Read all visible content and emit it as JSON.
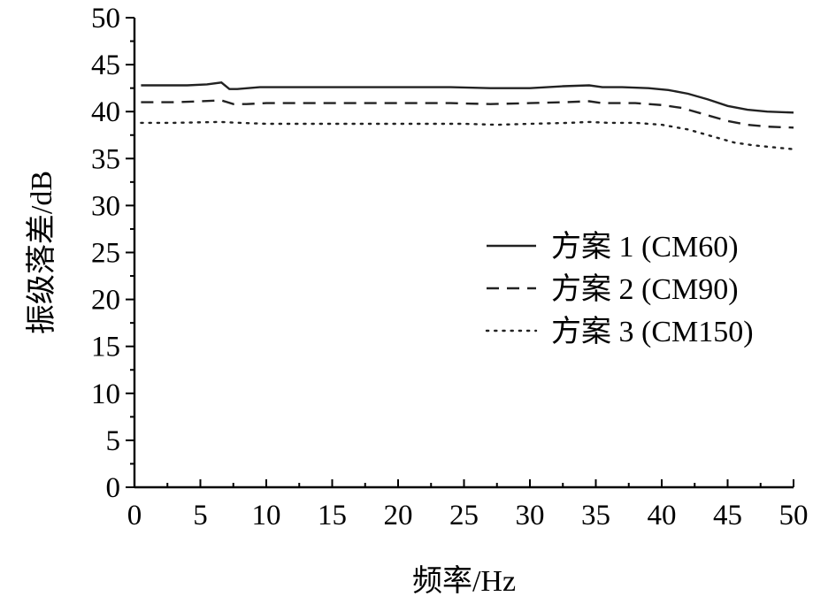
{
  "chart_data": {
    "type": "line",
    "xlabel": "频率/Hz",
    "ylabel": "振级落差/dB",
    "xlim": [
      0,
      50
    ],
    "ylim": [
      0,
      50
    ],
    "x_ticks": [
      0,
      5,
      10,
      15,
      20,
      25,
      30,
      35,
      40,
      45,
      50
    ],
    "y_ticks": [
      0,
      5,
      10,
      15,
      20,
      25,
      30,
      35,
      40,
      45,
      50
    ],
    "grid": false,
    "legend_position": "right-middle",
    "series": [
      {
        "name": "方案 1 (CM60)",
        "line_style": "solid",
        "color": "#222222",
        "points": [
          [
            0.5,
            42.8
          ],
          [
            2,
            42.8
          ],
          [
            4,
            42.8
          ],
          [
            5.5,
            42.9
          ],
          [
            6.6,
            43.1
          ],
          [
            7.2,
            42.4
          ],
          [
            7.8,
            42.4
          ],
          [
            9.5,
            42.6
          ],
          [
            12,
            42.6
          ],
          [
            15,
            42.6
          ],
          [
            20,
            42.6
          ],
          [
            24,
            42.6
          ],
          [
            27,
            42.5
          ],
          [
            30,
            42.5
          ],
          [
            32.5,
            42.7
          ],
          [
            34.5,
            42.8
          ],
          [
            35.5,
            42.6
          ],
          [
            37,
            42.6
          ],
          [
            39,
            42.5
          ],
          [
            40.5,
            42.3
          ],
          [
            42,
            41.9
          ],
          [
            43.5,
            41.3
          ],
          [
            45,
            40.6
          ],
          [
            46.5,
            40.2
          ],
          [
            48,
            40.0
          ],
          [
            50,
            39.9
          ]
        ]
      },
      {
        "name": "方案 2 (CM90)",
        "line_style": "dashed",
        "color": "#444444",
        "points": [
          [
            0.5,
            41.0
          ],
          [
            3,
            41.0
          ],
          [
            5,
            41.1
          ],
          [
            6.6,
            41.2
          ],
          [
            7.5,
            40.8
          ],
          [
            8.5,
            40.8
          ],
          [
            10,
            40.9
          ],
          [
            15,
            40.9
          ],
          [
            20,
            40.9
          ],
          [
            24,
            40.9
          ],
          [
            27,
            40.8
          ],
          [
            30,
            40.9
          ],
          [
            32.5,
            41.0
          ],
          [
            34.5,
            41.1
          ],
          [
            35.5,
            40.9
          ],
          [
            38,
            40.9
          ],
          [
            40,
            40.7
          ],
          [
            41.5,
            40.4
          ],
          [
            43,
            39.8
          ],
          [
            45,
            39.0
          ],
          [
            46.5,
            38.6
          ],
          [
            48,
            38.4
          ],
          [
            50,
            38.3
          ]
        ]
      },
      {
        "name": "方案 3 (CM150)",
        "line_style": "dotted",
        "color": "#444444",
        "points": [
          [
            0.5,
            38.8
          ],
          [
            3,
            38.8
          ],
          [
            6.5,
            38.9
          ],
          [
            8,
            38.8
          ],
          [
            10,
            38.7
          ],
          [
            15,
            38.7
          ],
          [
            20,
            38.7
          ],
          [
            25,
            38.7
          ],
          [
            27.5,
            38.6
          ],
          [
            30,
            38.7
          ],
          [
            33,
            38.8
          ],
          [
            34.5,
            38.9
          ],
          [
            36,
            38.8
          ],
          [
            38,
            38.8
          ],
          [
            40,
            38.6
          ],
          [
            42,
            38.1
          ],
          [
            44,
            37.3
          ],
          [
            45.5,
            36.7
          ],
          [
            47,
            36.4
          ],
          [
            48.5,
            36.2
          ],
          [
            50,
            36.0
          ]
        ]
      }
    ]
  }
}
